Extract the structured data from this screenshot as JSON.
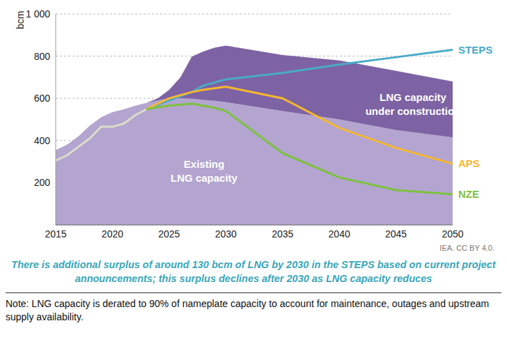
{
  "chart_data": {
    "type": "area",
    "y_label": "bcm",
    "x": [
      2015,
      2016,
      2017,
      2018,
      2019,
      2020,
      2021,
      2022,
      2023,
      2024,
      2025,
      2026,
      2027,
      2028,
      2029,
      2030,
      2035,
      2040,
      2045,
      2050
    ],
    "xlim": [
      2015,
      2050
    ],
    "xticks": [
      2015,
      2020,
      2025,
      2030,
      2035,
      2040,
      2045,
      2050
    ],
    "ylim": [
      0,
      1000
    ],
    "yticks": [
      200,
      400,
      600,
      800,
      {
        "value": 1000,
        "label": "1 000"
      }
    ],
    "grid": true,
    "stacked": true,
    "series": [
      {
        "name": "Existing\nLNG capacity",
        "type": "area",
        "color": "#b3a5cf",
        "values": [
          355,
          380,
          420,
          470,
          510,
          535,
          548,
          565,
          578,
          590,
          600,
          600,
          598,
          592,
          588,
          582,
          540,
          500,
          450,
          415
        ]
      },
      {
        "name": "LNG capacity\nunder construction",
        "type": "area",
        "color": "#7d63a3",
        "values": [
          0,
          0,
          0,
          0,
          0,
          0,
          0,
          0,
          0,
          10,
          40,
          100,
          200,
          230,
          252,
          268,
          265,
          280,
          280,
          265
        ]
      },
      {
        "type": "line",
        "color": "#dcdccb",
        "values": [
          305,
          330,
          370,
          410,
          465,
          465,
          480,
          520,
          548,
          null,
          null,
          null,
          null,
          null,
          null,
          null,
          null,
          null,
          null,
          null
        ]
      },
      {
        "name": "STEPS",
        "type": "line",
        "color": "#4aaac8",
        "values": [
          null,
          null,
          null,
          null,
          null,
          null,
          null,
          null,
          548,
          570,
          590,
          610,
          630,
          660,
          675,
          690,
          720,
          760,
          795,
          830
        ]
      },
      {
        "name": "APS",
        "type": "line",
        "color": "#f5b731",
        "values": [
          null,
          null,
          null,
          null,
          null,
          null,
          null,
          null,
          548,
          575,
          600,
          615,
          630,
          640,
          648,
          655,
          600,
          460,
          365,
          290
        ]
      },
      {
        "name": "NZE",
        "type": "line",
        "color": "#7dc13d",
        "values": [
          null,
          null,
          null,
          null,
          null,
          null,
          null,
          null,
          548,
          558,
          565,
          570,
          575,
          565,
          555,
          540,
          340,
          225,
          165,
          145
        ]
      }
    ],
    "source": "IEA. CC BY 4.0.",
    "caption": "There is additional surplus of around 130 bcm of LNG by 2030 in the STEPS based on current project announcements; this surplus declines after 2030 as LNG capacity reduces",
    "note": "Note: LNG capacity is derated to 90% of nameplate capacity to account for maintenance, outages and upstream supply availability."
  }
}
